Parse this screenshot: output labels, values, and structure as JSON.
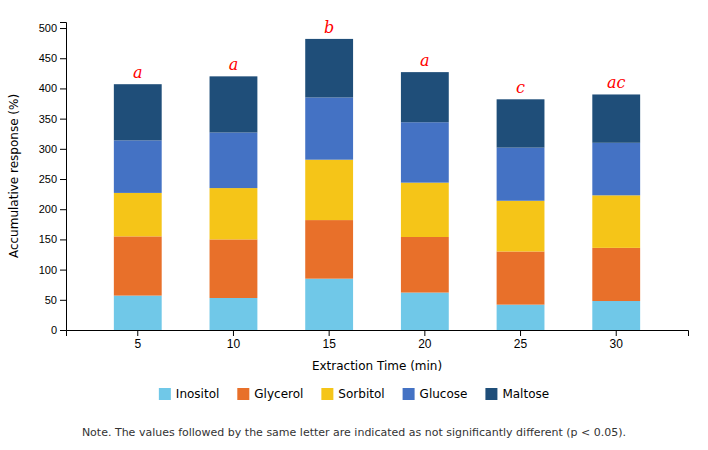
{
  "chart_data": {
    "type": "bar",
    "stacked": true,
    "categories": [
      "5",
      "10",
      "15",
      "20",
      "25",
      "30"
    ],
    "series": [
      {
        "name": "Inositol",
        "color": "#70C8E8",
        "values": [
          57,
          53,
          85,
          62,
          42,
          48
        ]
      },
      {
        "name": "Glycerol",
        "color": "#E8702A",
        "values": [
          98,
          97,
          97,
          92,
          88,
          88
        ]
      },
      {
        "name": "Sorbitol",
        "color": "#F5C518",
        "values": [
          72,
          85,
          100,
          90,
          84,
          87
        ]
      },
      {
        "name": "Glucose",
        "color": "#4472C4",
        "values": [
          87,
          92,
          103,
          100,
          88,
          87
        ]
      },
      {
        "name": "Maltose",
        "color": "#1F4E79",
        "values": [
          93,
          93,
          97,
          83,
          80,
          80
        ]
      }
    ],
    "xlabel": "Extraction Time (min)",
    "ylabel": "Accumulative response (%)",
    "ylim": [
      0,
      510
    ],
    "yticks": [
      0,
      50,
      100,
      150,
      200,
      250,
      300,
      350,
      400,
      450,
      500
    ],
    "grid": false,
    "legend": "bottom",
    "annotations": [
      {
        "text": "a",
        "category": "5",
        "color": "#FF0000"
      },
      {
        "text": "a",
        "category": "10",
        "color": "#FF0000"
      },
      {
        "text": "b",
        "category": "15",
        "color": "#FF0000"
      },
      {
        "text": "a",
        "category": "20",
        "color": "#FF0000"
      },
      {
        "text": "c",
        "category": "25",
        "color": "#FF0000"
      },
      {
        "text": "ac",
        "category": "30",
        "color": "#FF0000"
      },
      {
        "text": "Note. The values followed by the same letter are indicated as not significantly different (p < 0.05)."
      }
    ]
  }
}
